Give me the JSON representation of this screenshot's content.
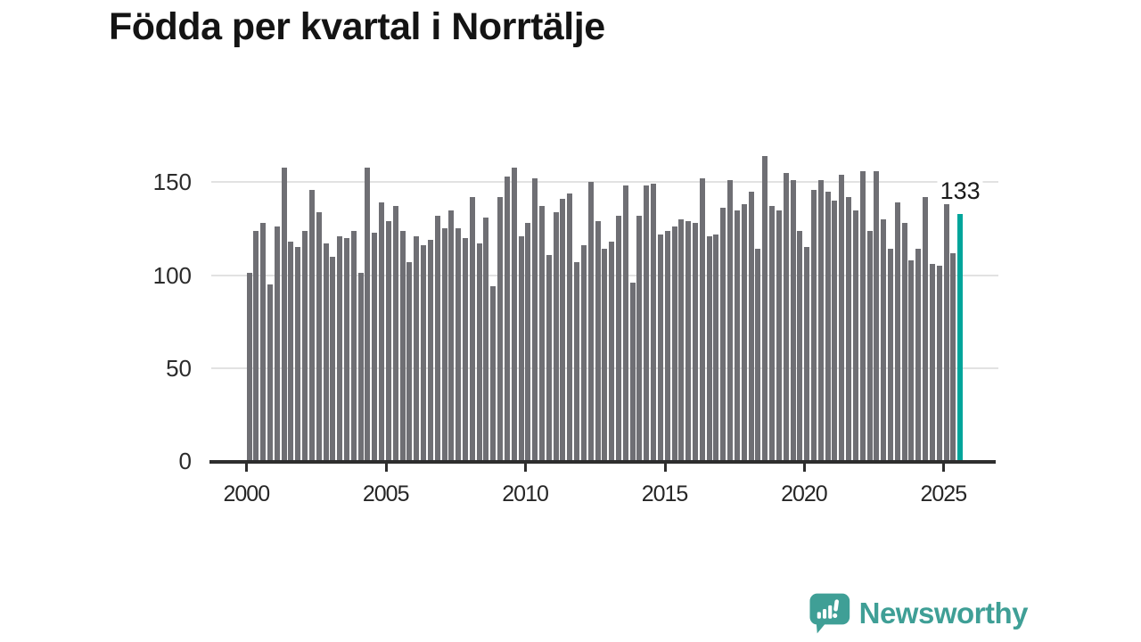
{
  "title": "Födda per kvartal i Norrtälje",
  "annotation": {
    "label": "133"
  },
  "logo": {
    "text": "Newsworthy"
  },
  "colors": {
    "bar": "#6f6f74",
    "highlight": "#00a59b",
    "axis": "#2e2e2e",
    "grid": "#e2e2e2",
    "logo_teal": "#3f9f96"
  },
  "chart_data": {
    "type": "bar",
    "title": "Födda per kvartal i Norrtälje",
    "x_start": "2000-Q1",
    "x_end": "2025-Q3",
    "quarters_per_year": 4,
    "ylim": [
      0,
      170
    ],
    "grid": true,
    "y_ticks": [
      0,
      50,
      100,
      150
    ],
    "x_ticks": [
      2000,
      2005,
      2010,
      2015,
      2020,
      2025
    ],
    "highlight_index": 102,
    "highlight_label": "133",
    "values": [
      101,
      124,
      128,
      95,
      126,
      158,
      118,
      115,
      124,
      146,
      134,
      117,
      110,
      121,
      120,
      124,
      101,
      158,
      123,
      139,
      129,
      137,
      124,
      107,
      121,
      116,
      119,
      132,
      125,
      135,
      125,
      120,
      142,
      117,
      131,
      94,
      142,
      153,
      158,
      121,
      128,
      152,
      137,
      111,
      134,
      141,
      144,
      107,
      116,
      150,
      129,
      114,
      118,
      132,
      148,
      96,
      132,
      148,
      149,
      122,
      124,
      126,
      130,
      129,
      128,
      152,
      121,
      122,
      136,
      151,
      135,
      138,
      145,
      114,
      164,
      137,
      135,
      155,
      151,
      124,
      115,
      146,
      151,
      145,
      140,
      154,
      142,
      135,
      156,
      124,
      156,
      130,
      114,
      139,
      128,
      108,
      114,
      142,
      106,
      105,
      138,
      112,
      133
    ]
  }
}
